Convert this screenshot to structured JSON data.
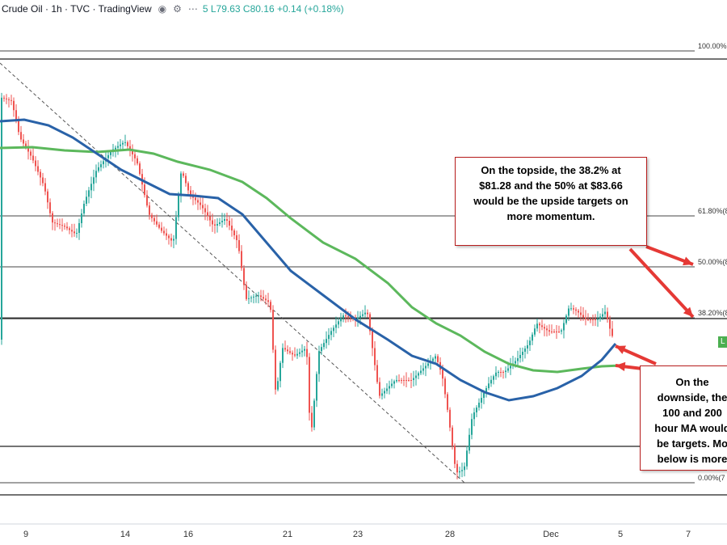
{
  "header": {
    "title": "Crude Oil · 1h · TVC · TradingView",
    "ohlc": "5 L79.63 C80.16 +0.14 (+0.18%)",
    "eye_icon": "eye-icon",
    "settings_icon": "gear-icon",
    "more_icon": "more-icon"
  },
  "price_tag": "L",
  "callouts": {
    "top": [
      "On the topside, the 38.2% at",
      "$81.28 and the 50% at $83.66",
      "would be the upside targets on",
      "more momentum."
    ],
    "bottom": [
      "On the",
      "downside, the",
      "100 and 200",
      "hour MA would",
      "be targets. Mo",
      "below is more"
    ]
  },
  "chart_data": {
    "type": "candlestick",
    "x_tick_labels": [
      "9",
      "14",
      "16",
      "21",
      "23",
      "28",
      "Dec",
      "5",
      "7"
    ],
    "fib_levels": [
      {
        "label": "100.00%(",
        "pct": 100.0
      },
      {
        "label": "61.80%(8",
        "pct": 61.8
      },
      {
        "label": "50.00%(8",
        "pct": 50.0
      },
      {
        "label": "38.20%(8",
        "pct": 38.2
      },
      {
        "label": "0.00%(7",
        "pct": 0.0
      }
    ],
    "price_label_38_2": 81.28,
    "price_label_50": 83.66,
    "last_close": 80.16,
    "moving_averages": [
      {
        "name": "100 hour MA",
        "color": "#2962a8"
      },
      {
        "name": "200 hour MA",
        "color": "#5cb85c"
      }
    ],
    "colors": {
      "up": "#26a69a",
      "down": "#ef5350",
      "annotation": "#e53935",
      "trendline": "#555555"
    }
  }
}
